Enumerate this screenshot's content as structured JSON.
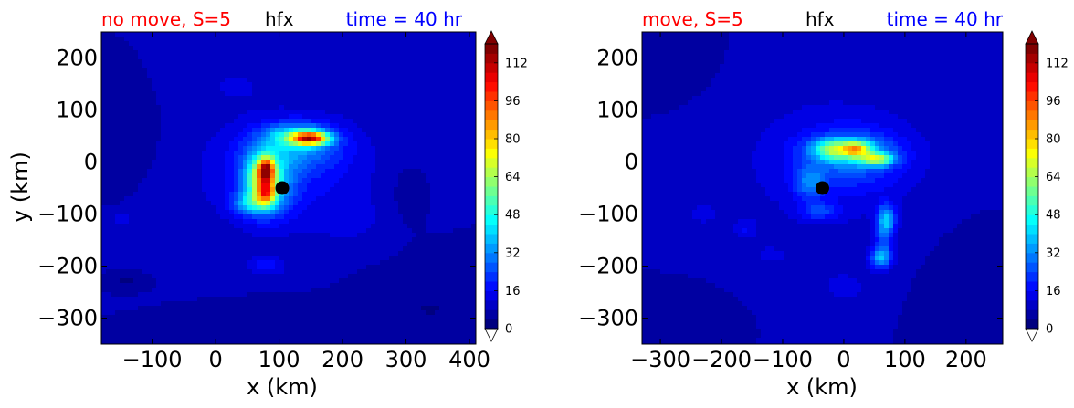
{
  "colors": {
    "left_title": "#ff0000",
    "center_title": "#000000",
    "right_title": "#0000ff",
    "black": "#000000"
  },
  "chart_data": [
    {
      "type": "heatmap",
      "title_left": "no move, S=5",
      "title_center": "hfx",
      "title_right": "time = 40 hr",
      "xlabel": "x (km)",
      "ylabel": "y (km)",
      "xlim": [
        -180,
        410
      ],
      "ylim": [
        -350,
        250
      ],
      "xticks": [
        -100,
        0,
        100,
        200,
        300,
        400
      ],
      "xtick_labels": [
        "−100",
        "0",
        "100",
        "200",
        "300",
        "400"
      ],
      "yticks": [
        200,
        100,
        0,
        -100,
        -200,
        -300
      ],
      "ytick_labels": [
        "200",
        "100",
        "0",
        "−100",
        "−200",
        "−300"
      ],
      "colorbar": {
        "min": 0,
        "max": 120,
        "ticks": [
          0,
          16,
          32,
          48,
          64,
          80,
          96,
          112
        ],
        "tick_labels": [
          "0",
          "16",
          "32",
          "48",
          "64",
          "80",
          "96",
          "112"
        ],
        "colormap": "jet",
        "extend": "both"
      },
      "center_marker": {
        "x": 105,
        "y": -50
      },
      "background_level": 8,
      "features": [
        {
          "x": 30,
          "y": 150,
          "sx": 60,
          "sy": 40,
          "amp": 4
        },
        {
          "x": 110,
          "y": -20,
          "sx": 140,
          "sy": 110,
          "amp": 10
        },
        {
          "x": 130,
          "y": 30,
          "sx": 70,
          "sy": 45,
          "amp": 18
        },
        {
          "x": 80,
          "y": -40,
          "sx": 40,
          "sy": 60,
          "amp": 30
        },
        {
          "x": 130,
          "y": 50,
          "sx": 45,
          "sy": 20,
          "amp": 28
        },
        {
          "x": 75,
          "y": -30,
          "sx": 22,
          "sy": 40,
          "amp": 40
        },
        {
          "x": 150,
          "y": 45,
          "sx": 28,
          "sy": 12,
          "amp": 70
        },
        {
          "x": 80,
          "y": -15,
          "sx": 12,
          "sy": 22,
          "amp": 55
        },
        {
          "x": 80,
          "y": -60,
          "sx": 15,
          "sy": 20,
          "amp": 40
        },
        {
          "x": 60,
          "y": -80,
          "sx": 30,
          "sy": 20,
          "amp": 24
        },
        {
          "x": 80,
          "y": -200,
          "sx": 30,
          "sy": 18,
          "amp": 10
        },
        {
          "x": -150,
          "y": -110,
          "sx": 18,
          "sy": 12,
          "amp": 6
        },
        {
          "x": 220,
          "y": -120,
          "sx": 60,
          "sy": 50,
          "amp": 3
        },
        {
          "x": -140,
          "y": -230,
          "sx": 20,
          "sy": 10,
          "amp": -6
        },
        {
          "x": 300,
          "y": -60,
          "sx": 30,
          "sy": 60,
          "amp": -3
        }
      ],
      "low_regions": [
        {
          "x": -150,
          "y": 40,
          "sx": 50,
          "sy": 70,
          "amp": -4
        },
        {
          "x": 340,
          "y": -280,
          "sx": 90,
          "sy": 80,
          "amp": -4
        },
        {
          "x": 150,
          "y": -320,
          "sx": 110,
          "sy": 40,
          "amp": -3
        }
      ]
    },
    {
      "type": "heatmap",
      "title_left": "move, S=5",
      "title_center": "hfx",
      "title_right": "time = 40 hr",
      "xlabel": "x (km)",
      "ylabel": "",
      "xlim": [
        -330,
        260
      ],
      "ylim": [
        -350,
        250
      ],
      "xticks": [
        -300,
        -200,
        -100,
        0,
        100,
        200
      ],
      "xtick_labels": [
        "−300",
        "−200",
        "−100",
        "0",
        "100",
        "200"
      ],
      "yticks": [
        200,
        100,
        0,
        -100,
        -200,
        -300
      ],
      "ytick_labels": [
        "200",
        "100",
        "0",
        "−100",
        "−200",
        "−300"
      ],
      "colorbar": {
        "min": 0,
        "max": 120,
        "ticks": [
          0,
          16,
          32,
          48,
          64,
          80,
          96,
          112
        ],
        "tick_labels": [
          "0",
          "16",
          "32",
          "48",
          "64",
          "80",
          "96",
          "112"
        ],
        "colormap": "jet",
        "extend": "both"
      },
      "center_marker": {
        "x": -35,
        "y": -50
      },
      "background_level": 8,
      "features": [
        {
          "x": -20,
          "y": 0,
          "sx": 150,
          "sy": 130,
          "amp": 8
        },
        {
          "x": 20,
          "y": 10,
          "sx": 80,
          "sy": 55,
          "amp": 14
        },
        {
          "x": 10,
          "y": 20,
          "sx": 60,
          "sy": 25,
          "amp": 22
        },
        {
          "x": -20,
          "y": 25,
          "sx": 30,
          "sy": 18,
          "amp": 28
        },
        {
          "x": 20,
          "y": 25,
          "sx": 22,
          "sy": 14,
          "amp": 40
        },
        {
          "x": 55,
          "y": 5,
          "sx": 25,
          "sy": 12,
          "amp": 42
        },
        {
          "x": -55,
          "y": -40,
          "sx": 25,
          "sy": 30,
          "amp": 18
        },
        {
          "x": -40,
          "y": -95,
          "sx": 30,
          "sy": 15,
          "amp": 14
        },
        {
          "x": 70,
          "y": -110,
          "sx": 14,
          "sy": 28,
          "amp": 28
        },
        {
          "x": 60,
          "y": -185,
          "sx": 18,
          "sy": 20,
          "amp": 26
        },
        {
          "x": 65,
          "y": -150,
          "sx": 14,
          "sy": 40,
          "amp": 14
        },
        {
          "x": -230,
          "y": -100,
          "sx": 25,
          "sy": 20,
          "amp": 6
        },
        {
          "x": -160,
          "y": -130,
          "sx": 20,
          "sy": 20,
          "amp": 7
        },
        {
          "x": -120,
          "y": -180,
          "sx": 30,
          "sy": 20,
          "amp": 5
        },
        {
          "x": 0,
          "y": -240,
          "sx": 40,
          "sy": 30,
          "amp": 6
        }
      ],
      "low_regions": [
        {
          "x": -300,
          "y": 200,
          "sx": 60,
          "sy": 60,
          "amp": -4
        },
        {
          "x": 220,
          "y": -240,
          "sx": 60,
          "sy": 90,
          "amp": -4
        },
        {
          "x": -280,
          "y": -300,
          "sx": 60,
          "sy": 40,
          "amp": -3
        }
      ]
    }
  ]
}
